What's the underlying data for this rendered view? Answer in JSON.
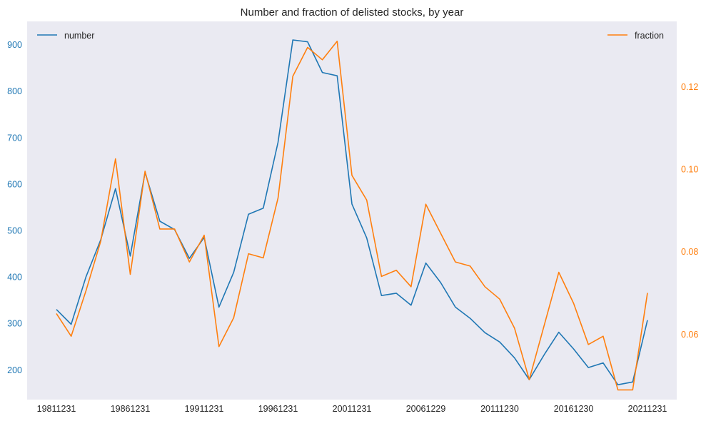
{
  "chart_data": {
    "type": "line",
    "title": "Number and fraction of delisted stocks, by year",
    "x": [
      "19811231",
      "19821231",
      "19831230",
      "19841231",
      "19851231",
      "19861231",
      "19871231",
      "19881230",
      "19891229",
      "19901231",
      "19911231",
      "19921231",
      "19931231",
      "19941230",
      "19951229",
      "19961231",
      "19971231",
      "19981231",
      "19991231",
      "20001229",
      "20011231",
      "20021231",
      "20031231",
      "20041231",
      "20051230",
      "20061229",
      "20071231",
      "20081231",
      "20091231",
      "20101231",
      "20111230",
      "20121231",
      "20131231",
      "20141231",
      "20151231",
      "20161230",
      "20171229",
      "20181231",
      "20191231",
      "20201231",
      "20211231"
    ],
    "xticks": [
      "19811231",
      "19861231",
      "19911231",
      "19961231",
      "20011231",
      "20061229",
      "20111230",
      "20161230",
      "20211231"
    ],
    "colors": {
      "number": "#1f77b4",
      "fraction": "#ff7f0e",
      "background": "#eaeaf2"
    },
    "legend": {
      "left": "upper-left",
      "right": "upper-right"
    },
    "grid": false,
    "series": [
      {
        "name": "number",
        "axis": "left",
        "values": [
          330,
          298,
          400,
          480,
          590,
          445,
          625,
          520,
          502,
          440,
          485,
          335,
          410,
          535,
          548,
          690,
          910,
          906,
          840,
          833,
          557,
          484,
          360,
          365,
          339,
          430,
          388,
          335,
          311,
          280,
          260,
          226,
          179,
          232,
          281,
          245,
          205,
          215,
          168,
          174,
          307
        ]
      },
      {
        "name": "fraction",
        "axis": "right",
        "values": [
          0.065,
          0.0595,
          0.0705,
          0.0825,
          0.1025,
          0.0745,
          0.0995,
          0.0855,
          0.0855,
          0.0775,
          0.084,
          0.057,
          0.064,
          0.0795,
          0.0785,
          0.093,
          0.1225,
          0.1295,
          0.1265,
          0.131,
          0.0985,
          0.0925,
          0.074,
          0.0755,
          0.0715,
          0.0915,
          0.0845,
          0.0775,
          0.0765,
          0.0715,
          0.0685,
          0.0615,
          0.049,
          0.062,
          0.075,
          0.0675,
          0.0575,
          0.0595,
          0.0465,
          0.0465,
          0.07
        ]
      }
    ],
    "yleft": {
      "ylim": [
        136,
        950
      ],
      "ticks": [
        200,
        300,
        400,
        500,
        600,
        700,
        800,
        900
      ]
    },
    "yright": {
      "ylim": [
        0.04415,
        0.1358
      ],
      "ticks": [
        "0.06",
        "0.08",
        "0.10",
        "0.12"
      ]
    }
  }
}
